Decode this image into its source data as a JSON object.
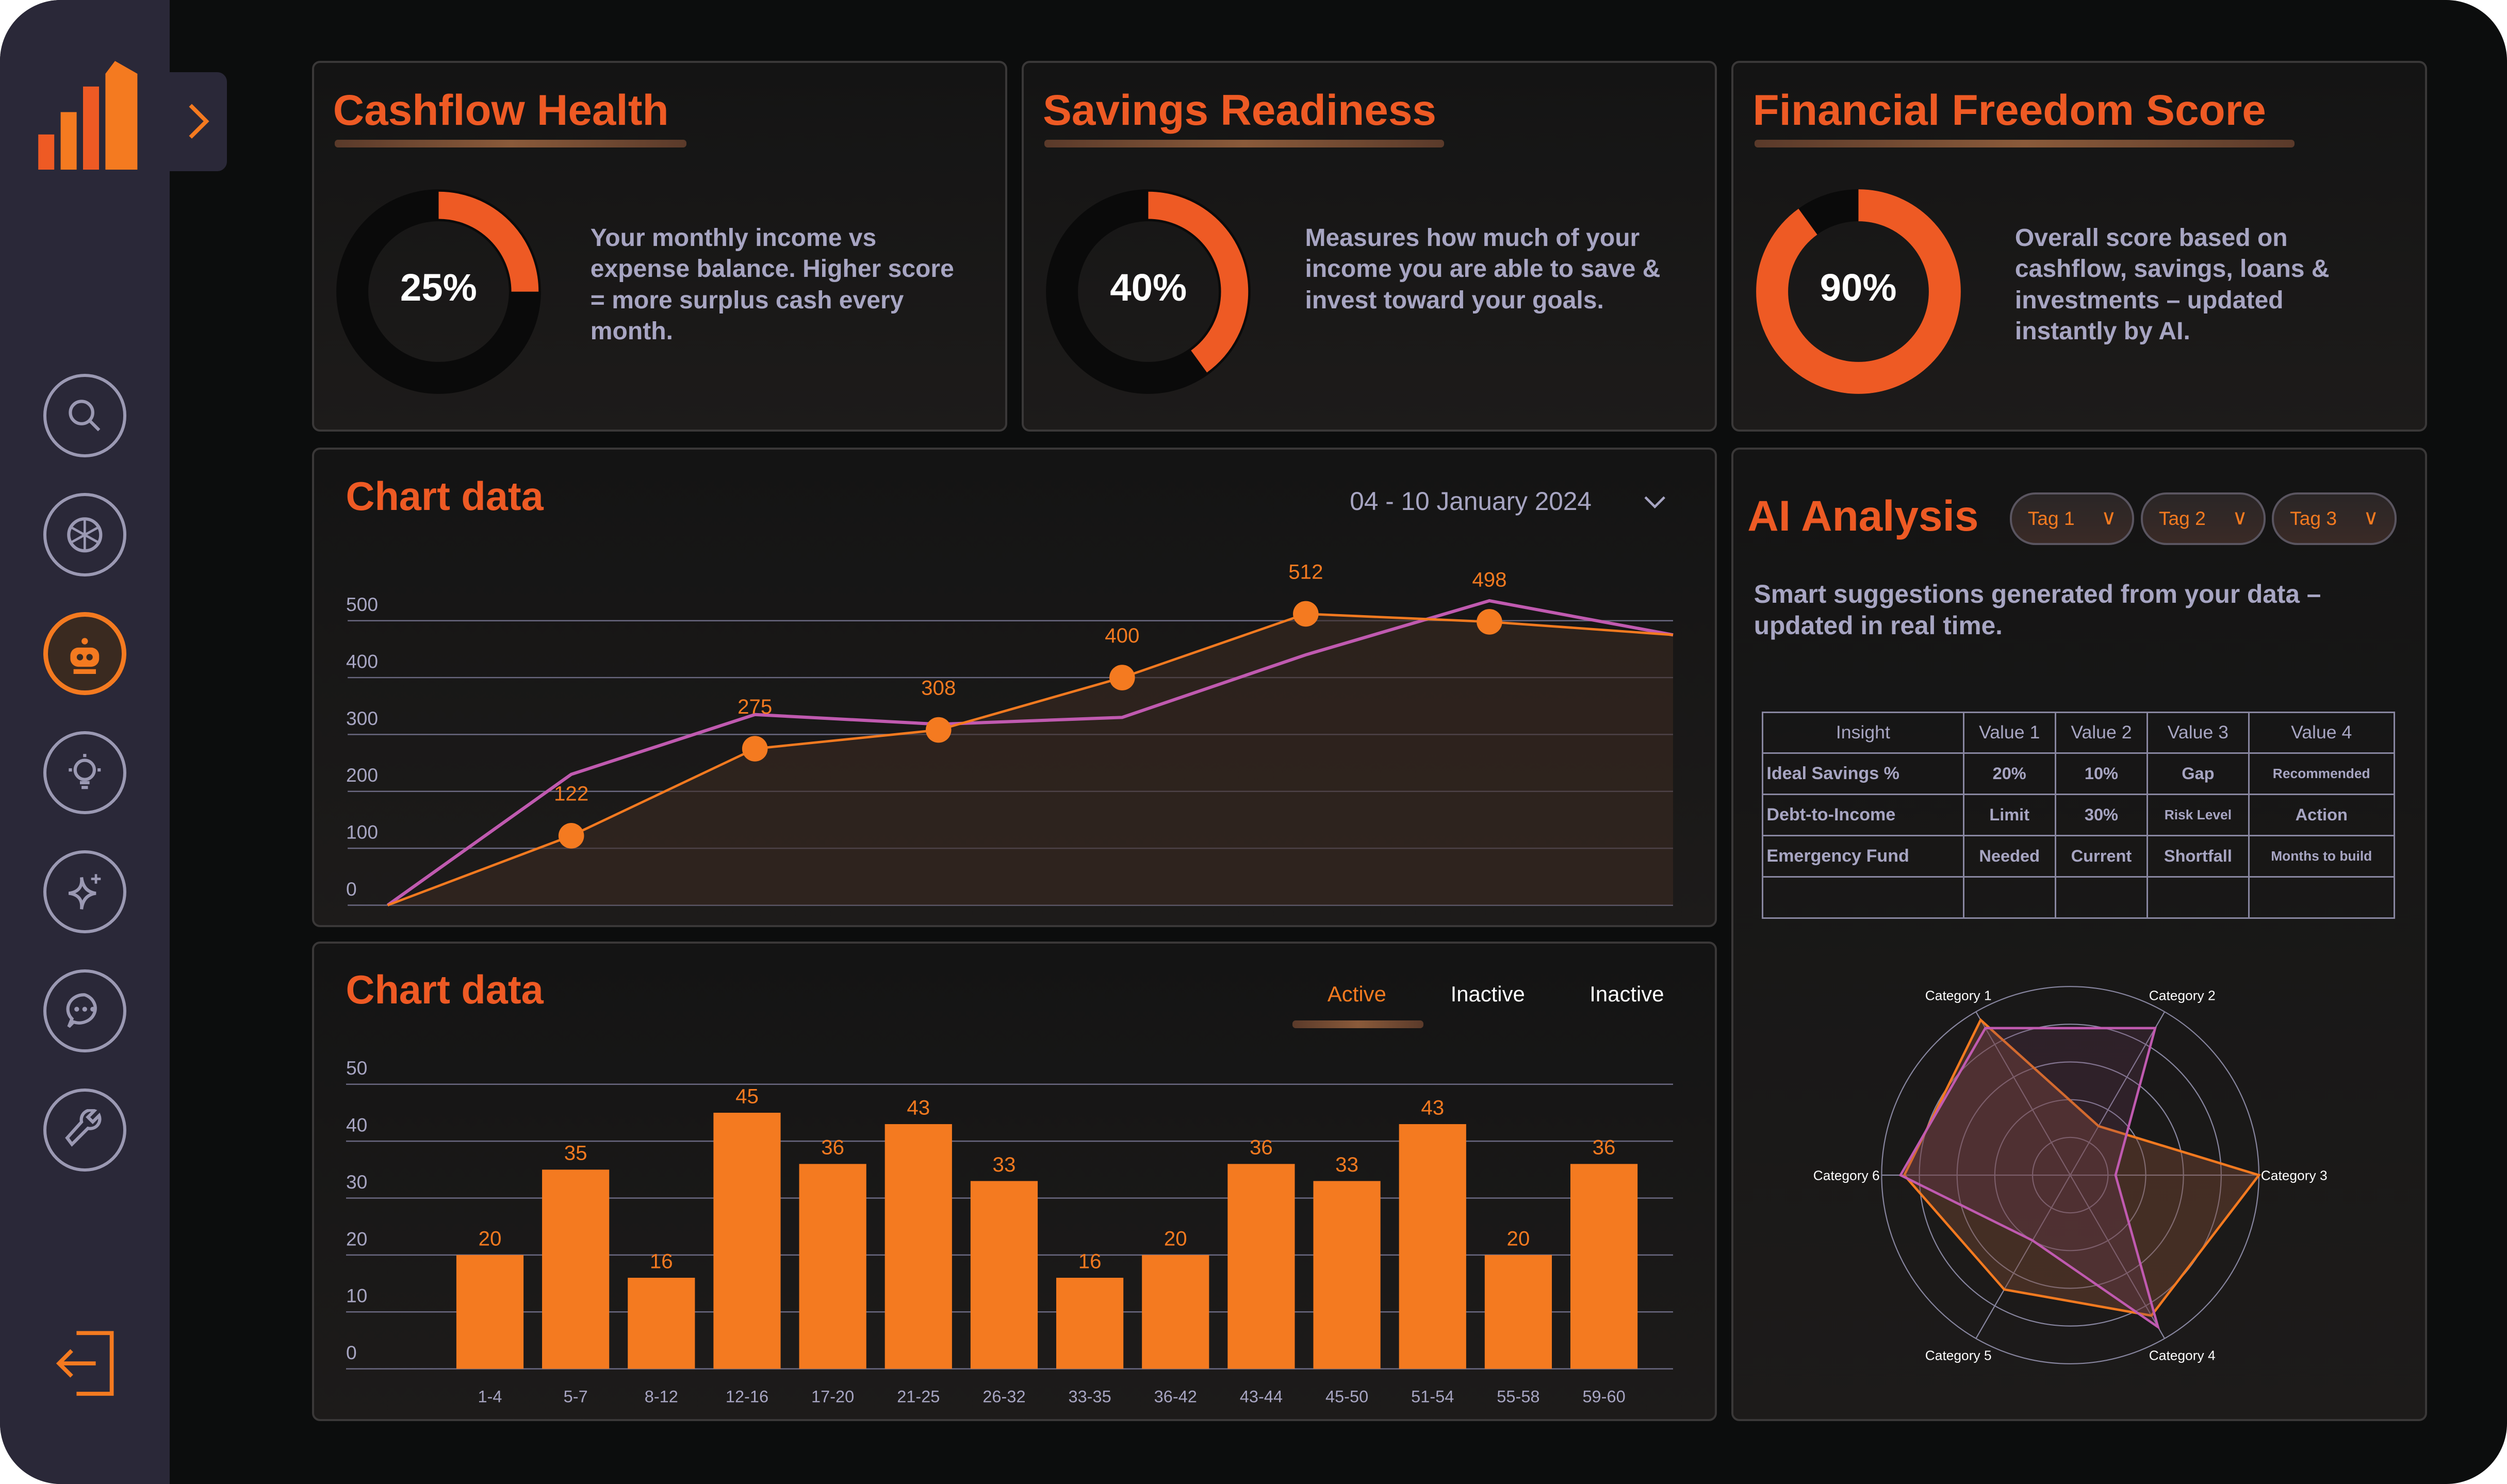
{
  "colors": {
    "accent": "#ee5a24",
    "orange": "#f47a20",
    "purple": "#c05ab0",
    "sidebar": "#2a2838",
    "text_muted": "#a7a5c2"
  },
  "sidebar": {
    "items": [
      {
        "icon": "search-icon",
        "active": false
      },
      {
        "icon": "openai-icon",
        "active": false
      },
      {
        "icon": "robot-icon",
        "active": true
      },
      {
        "icon": "lightbulb-icon",
        "active": false
      },
      {
        "icon": "sparkle-icon",
        "active": false
      },
      {
        "icon": "chat-icon",
        "active": false
      },
      {
        "icon": "wrench-icon",
        "active": false
      }
    ],
    "logout_icon": "logout-icon",
    "expand_icon": "chevron-right-icon"
  },
  "kpis": [
    {
      "title": "Cashflow Health",
      "value": "25%",
      "fraction": 0.25,
      "description": "Your monthly income vs expense balance. Higher score = more surplus cash every month."
    },
    {
      "title": "Savings Readiness",
      "value": "40%",
      "fraction": 0.4,
      "description": "Measures how much of your income you are able to save & invest toward your goals."
    },
    {
      "title": "Financial Freedom Score",
      "value": "90%",
      "fraction": 0.9,
      "description": "Overall score based on cashflow, savings, loans & investments – updated instantly by AI."
    }
  ],
  "line_panel": {
    "title": "Chart data",
    "date_range": "04 - 10 January 2024"
  },
  "bar_panel": {
    "title": "Chart data",
    "tabs": [
      "Active",
      "Inactive",
      "Inactive"
    ],
    "active_tab": 0
  },
  "ai": {
    "title": "AI Analysis",
    "tags": [
      "Tag 1",
      "Tag 2",
      "Tag 3"
    ],
    "subtitle": "Smart suggestions generated from your data – updated in real time.",
    "table": {
      "headers": [
        "Insight",
        "Value 1",
        "Value 2",
        "Value 3",
        "Value 4"
      ],
      "rows": [
        [
          "Ideal Savings %",
          "20%",
          "10%",
          "Gap",
          "Recommended"
        ],
        [
          "Debt-to-Income",
          "Limit",
          "30%",
          "Risk Level",
          "Action"
        ],
        [
          "Emergency Fund",
          "Needed",
          "Current",
          "Shortfall",
          "Months to build"
        ],
        [
          "",
          "",
          "",
          "",
          ""
        ]
      ]
    }
  },
  "chart_data": [
    {
      "type": "line",
      "ylim": [
        0,
        500
      ],
      "yticks": [
        0,
        100,
        200,
        300,
        400,
        500
      ],
      "grid": true,
      "series": [
        {
          "values": [
            0,
            122,
            275,
            308,
            400,
            512,
            498,
            475
          ],
          "labels": [
            "",
            "122",
            "275",
            "308",
            "400",
            "512",
            "498",
            ""
          ],
          "color": "#f47a20"
        },
        {
          "values": [
            0,
            230,
            335,
            318,
            330,
            440,
            535,
            475
          ],
          "color": "#c05ab0"
        }
      ]
    },
    {
      "type": "bar",
      "ylim": [
        0,
        50
      ],
      "yticks": [
        0,
        10,
        20,
        30,
        40,
        50
      ],
      "grid": true,
      "categories": [
        "1-4",
        "5-7",
        "8-12",
        "12-16",
        "17-20",
        "21-25",
        "26-32",
        "33-35",
        "36-42",
        "43-44",
        "45-50",
        "51-54",
        "55-58",
        "59-60"
      ],
      "values": [
        20,
        35,
        16,
        45,
        36,
        43,
        33,
        16,
        20,
        36,
        33,
        43,
        20,
        36
      ]
    },
    {
      "type": "radar",
      "categories": [
        "Category 1",
        "Category 2",
        "Category 3",
        "Category 4",
        "Category 5",
        "Category 6"
      ],
      "rlim": [
        0,
        100
      ],
      "series": [
        {
          "values": [
            95,
            30,
            100,
            86,
            70,
            88
          ],
          "color": "#f47a20"
        },
        {
          "values": [
            90,
            90,
            24,
            93,
            40,
            90
          ],
          "color": "#c05ab0"
        }
      ]
    }
  ]
}
